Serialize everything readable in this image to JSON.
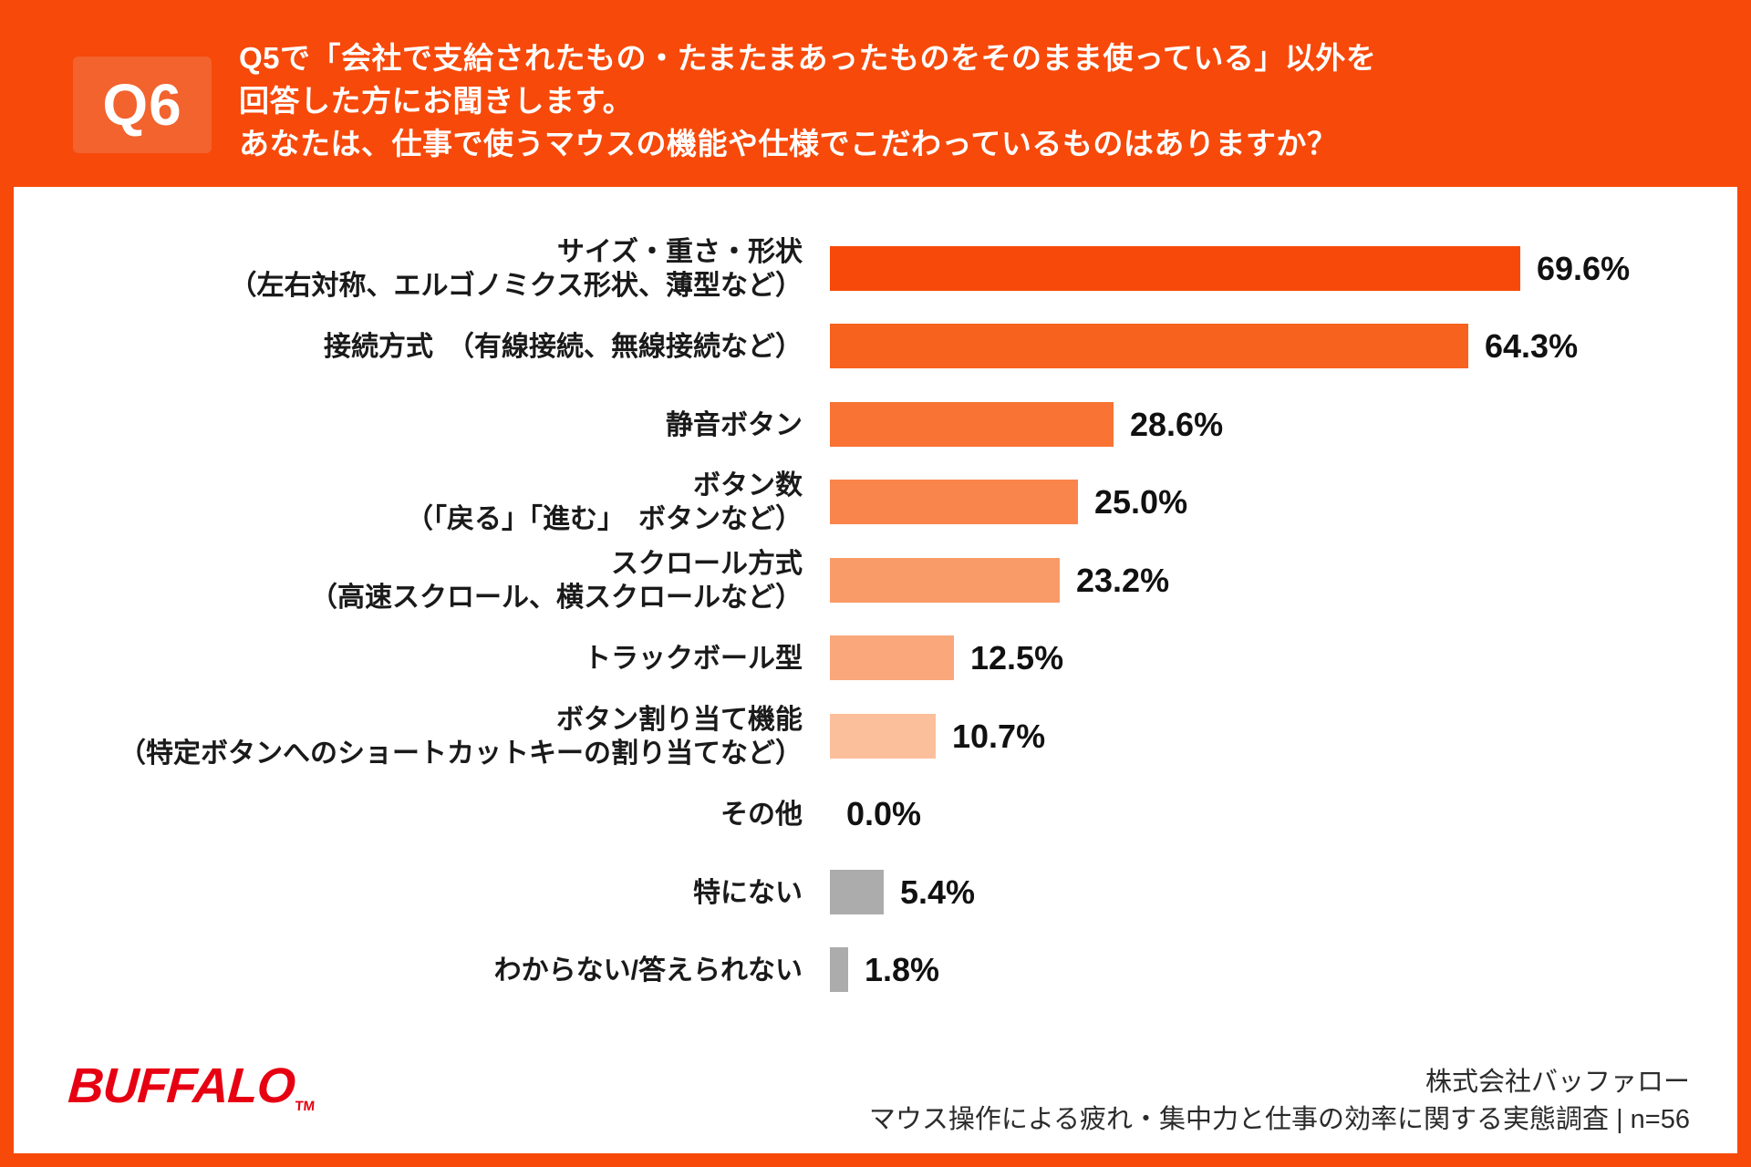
{
  "header": {
    "badge": "Q6",
    "title_lines": [
      "Q5で「会社で支給されたもの・たまたまあったものをそのまま使っている」以外を",
      "回答した方にお聞きします。",
      "あなたは、仕事で使うマウスの機能や仕様でこだわっているものはありますか？"
    ]
  },
  "chart_data": {
    "type": "bar",
    "orientation": "horizontal",
    "unit": "%",
    "xlim": [
      0,
      100
    ],
    "grid": false,
    "legend": false,
    "categories": [
      [
        "サイズ・重さ・形状",
        "（左右対称、エルゴノミクス形状、薄型など）"
      ],
      [
        "接続方式　（有線接続、無線接続など）"
      ],
      [
        "静音ボタン"
      ],
      [
        "ボタン数",
        "（「戻る」「進む」　ボタンなど）"
      ],
      [
        "スクロール方式",
        "（高速スクロール、横スクロールなど）"
      ],
      [
        "トラックボール型"
      ],
      [
        "ボタン割り当て機能",
        "（特定ボタンへのショートカットキーの割り当てなど）"
      ],
      [
        "その他"
      ],
      [
        "特にない"
      ],
      [
        "わからない/答えられない"
      ]
    ],
    "values": [
      69.6,
      64.3,
      28.6,
      25.0,
      23.2,
      12.5,
      10.7,
      0.0,
      5.4,
      1.8
    ],
    "value_labels": [
      "69.6%",
      "64.3%",
      "28.6%",
      "25.0%",
      "23.2%",
      "12.5%",
      "10.7%",
      "0.0%",
      "5.4%",
      "1.8%"
    ],
    "bar_colors": [
      "#F74A0A",
      "#F7621F",
      "#F87334",
      "#F9854C",
      "#F99B69",
      "#F9A77B",
      "#FBBF9C",
      "#FBBF9C",
      "#ACACAC",
      "#ACACAC"
    ]
  },
  "footer": {
    "logo": "BUFFALO",
    "logo_tm": "TM",
    "source_line1": "株式会社バッファロー",
    "source_line2": "マウス操作による疲れ・集中力と仕事の効率に関する実態調査 | n=56"
  },
  "colors": {
    "frame_orange": "#F7490A",
    "badge_orange": "#F2632E",
    "panel_white": "#FFFFFF",
    "label_black": "#1A1A1A",
    "gray_bar": "#ACACAC",
    "logo_red": "#E60012"
  }
}
